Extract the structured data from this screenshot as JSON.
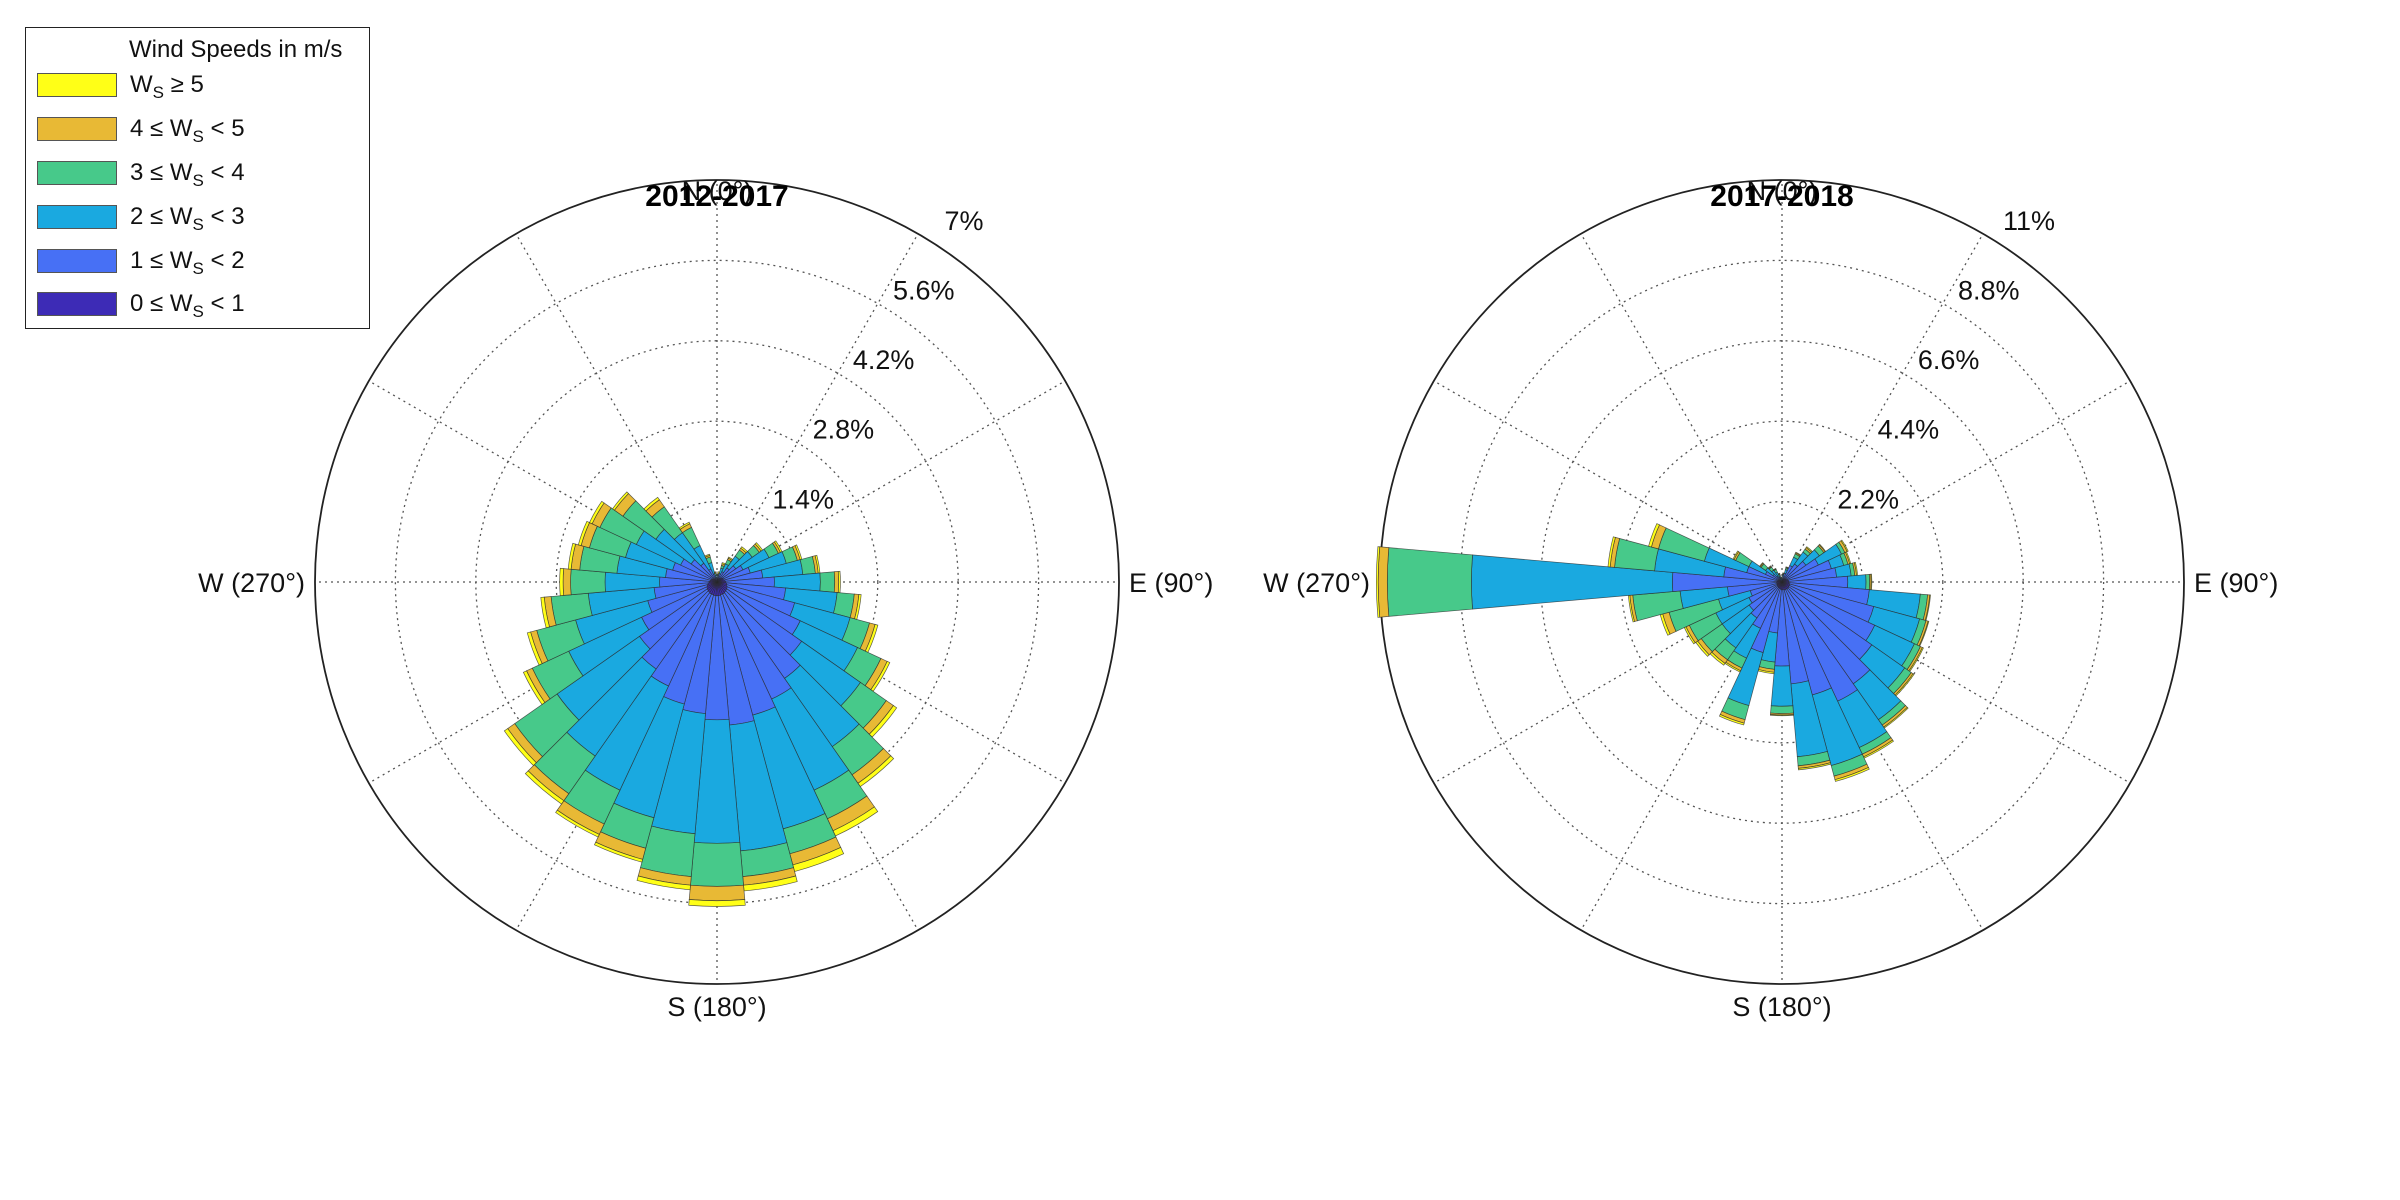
{
  "legend": {
    "title": "Wind Speeds in m/s",
    "items": [
      {
        "pre": "W",
        "sub": "S",
        "post": " ≥ 5",
        "color": "#ffff17"
      },
      {
        "pre": "4 ≤ W",
        "sub": "S",
        "post": " < 5",
        "color": "#e8b935"
      },
      {
        "pre": "3 ≤ W",
        "sub": "S",
        "post": " < 4",
        "color": "#47c98a"
      },
      {
        "pre": "2 ≤ W",
        "sub": "S",
        "post": " < 3",
        "color": "#1aa9e0"
      },
      {
        "pre": "1 ≤ W",
        "sub": "S",
        "post": " < 2",
        "color": "#4770f5"
      },
      {
        "pre": "0 ≤ W",
        "sub": "S",
        "post": " < 1",
        "color": "#3d2bb6"
      }
    ]
  },
  "chart_data": [
    {
      "type": "wind-rose",
      "title": "2012-2017",
      "direction_labels": {
        "N": "N (0°)",
        "E": "E (90°)",
        "S": "S (180°)",
        "W": "W (270°)"
      },
      "radial_ticks": [
        "1.4%",
        "2.8%",
        "4.2%",
        "5.6%",
        "7%"
      ],
      "radial_max": 7,
      "bin_width_deg": 10,
      "directions": [
        0,
        10,
        20,
        30,
        40,
        50,
        60,
        70,
        80,
        90,
        100,
        110,
        120,
        130,
        140,
        150,
        160,
        170,
        180,
        190,
        200,
        210,
        220,
        230,
        240,
        250,
        260,
        270,
        280,
        290,
        300,
        310,
        320,
        330,
        340,
        350
      ],
      "cumulative": [
        [
          0.02,
          0.04,
          0.05,
          0.06,
          0.07,
          0.08
        ],
        [
          0.05,
          0.1,
          0.12,
          0.14,
          0.16,
          0.18
        ],
        [
          0.05,
          0.15,
          0.25,
          0.3,
          0.33,
          0.35
        ],
        [
          0.06,
          0.2,
          0.35,
          0.43,
          0.46,
          0.48
        ],
        [
          0.08,
          0.3,
          0.55,
          0.68,
          0.72,
          0.75
        ],
        [
          0.1,
          0.4,
          0.75,
          0.9,
          0.94,
          0.97
        ],
        [
          0.12,
          0.5,
          1.0,
          1.18,
          1.22,
          1.25
        ],
        [
          0.12,
          0.6,
          1.25,
          1.45,
          1.5,
          1.53
        ],
        [
          0.14,
          0.8,
          1.5,
          1.72,
          1.77,
          1.8
        ],
        [
          0.15,
          1.0,
          1.8,
          2.05,
          2.12,
          2.15
        ],
        [
          0.17,
          1.2,
          2.1,
          2.4,
          2.48,
          2.52
        ],
        [
          0.18,
          1.4,
          2.4,
          2.75,
          2.85,
          2.9
        ],
        [
          0.2,
          1.6,
          2.7,
          3.15,
          3.27,
          3.32
        ],
        [
          0.21,
          1.8,
          3.05,
          3.6,
          3.75,
          3.82
        ],
        [
          0.22,
          2.05,
          3.5,
          4.1,
          4.28,
          4.35
        ],
        [
          0.23,
          2.25,
          4.0,
          4.55,
          4.78,
          4.88
        ],
        [
          0.23,
          2.4,
          4.45,
          4.9,
          5.1,
          5.22
        ],
        [
          0.24,
          2.5,
          4.7,
          5.15,
          5.3,
          5.4
        ],
        [
          0.24,
          2.4,
          4.55,
          5.3,
          5.55,
          5.65
        ],
        [
          0.24,
          2.3,
          4.4,
          5.15,
          5.3,
          5.38
        ],
        [
          0.23,
          2.2,
          4.25,
          4.8,
          5.0,
          5.05
        ],
        [
          0.23,
          2.0,
          4.0,
          4.65,
          4.85,
          4.9
        ],
        [
          0.22,
          1.85,
          3.7,
          4.5,
          4.65,
          4.72
        ],
        [
          0.21,
          1.65,
          3.4,
          4.3,
          4.45,
          4.52
        ],
        [
          0.2,
          1.45,
          2.85,
          3.55,
          3.66,
          3.72
        ],
        [
          0.18,
          1.25,
          2.55,
          3.25,
          3.36,
          3.42
        ],
        [
          0.16,
          1.1,
          2.25,
          2.9,
          3.02,
          3.08
        ],
        [
          0.14,
          1.0,
          1.95,
          2.55,
          2.68,
          2.74
        ],
        [
          0.12,
          0.9,
          1.75,
          2.4,
          2.55,
          2.6
        ],
        [
          0.11,
          0.8,
          1.65,
          2.3,
          2.45,
          2.5
        ],
        [
          0.1,
          0.7,
          1.55,
          2.25,
          2.4,
          2.45
        ],
        [
          0.09,
          0.55,
          1.3,
          2.0,
          2.18,
          2.22
        ],
        [
          0.07,
          0.4,
          1.05,
          1.6,
          1.75,
          1.8
        ],
        [
          0.05,
          0.25,
          0.7,
          1.05,
          1.12,
          1.15
        ],
        [
          0.04,
          0.15,
          0.35,
          0.45,
          0.48,
          0.5
        ],
        [
          0.03,
          0.08,
          0.12,
          0.15,
          0.17,
          0.18
        ]
      ]
    },
    {
      "type": "wind-rose",
      "title": "2017-2018",
      "direction_labels": {
        "N": "N (0°)",
        "E": "E (90°)",
        "S": "S (180°)",
        "W": "W (270°)"
      },
      "radial_ticks": [
        "2.2%",
        "4.4%",
        "6.6%",
        "8.8%",
        "11%"
      ],
      "radial_max": 11,
      "bin_width_deg": 10,
      "directions": [
        0,
        10,
        20,
        30,
        40,
        50,
        60,
        70,
        80,
        90,
        100,
        110,
        120,
        130,
        140,
        150,
        160,
        170,
        180,
        190,
        200,
        210,
        220,
        230,
        240,
        250,
        260,
        270,
        280,
        290,
        300,
        310,
        320,
        330,
        340,
        350
      ],
      "cumulative": [
        [
          0.02,
          0.05,
          0.06,
          0.07,
          0.08,
          0.09
        ],
        [
          0.04,
          0.15,
          0.2,
          0.22,
          0.24,
          0.25
        ],
        [
          0.05,
          0.25,
          0.35,
          0.4,
          0.42,
          0.43
        ],
        [
          0.08,
          0.5,
          0.75,
          0.85,
          0.88,
          0.9
        ],
        [
          0.1,
          0.6,
          1.0,
          1.1,
          1.15,
          1.18
        ],
        [
          0.12,
          0.8,
          1.25,
          1.4,
          1.44,
          1.46
        ],
        [
          0.14,
          1.1,
          1.8,
          1.9,
          1.97,
          2.0
        ],
        [
          0.16,
          1.4,
          1.75,
          1.87,
          1.92,
          1.95
        ],
        [
          0.18,
          1.5,
          1.9,
          2.0,
          2.05,
          2.08
        ],
        [
          0.18,
          1.8,
          2.3,
          2.4,
          2.44,
          2.46
        ],
        [
          0.2,
          2.4,
          3.8,
          4.0,
          4.06,
          4.08
        ],
        [
          0.22,
          2.6,
          3.9,
          4.08,
          4.14,
          4.16
        ],
        [
          0.22,
          2.8,
          4.0,
          4.18,
          4.24,
          4.27
        ],
        [
          0.23,
          3.0,
          4.1,
          4.32,
          4.38,
          4.41
        ],
        [
          0.23,
          3.4,
          4.6,
          4.78,
          4.85,
          4.88
        ],
        [
          0.23,
          3.6,
          5.0,
          5.2,
          5.28,
          5.32
        ],
        [
          0.22,
          3.2,
          5.2,
          5.5,
          5.6,
          5.65
        ],
        [
          0.22,
          2.8,
          4.8,
          5.05,
          5.12,
          5.16
        ],
        [
          0.21,
          2.3,
          3.4,
          3.6,
          3.64,
          3.66
        ],
        [
          0.2,
          1.4,
          2.2,
          2.4,
          2.48,
          2.52
        ],
        [
          0.19,
          2.0,
          3.5,
          3.9,
          4.0,
          4.05
        ],
        [
          0.18,
          1.4,
          2.3,
          2.6,
          2.68,
          2.72
        ],
        [
          0.17,
          1.2,
          2.2,
          2.6,
          2.72,
          2.78
        ],
        [
          0.16,
          1.1,
          2.0,
          2.7,
          2.82,
          2.88
        ],
        [
          0.15,
          1.0,
          2.0,
          2.8,
          2.9,
          2.95
        ],
        [
          0.14,
          0.9,
          1.8,
          3.2,
          3.38,
          3.45
        ],
        [
          0.14,
          1.5,
          2.8,
          4.1,
          4.18,
          4.22
        ],
        [
          0.15,
          3.0,
          8.5,
          10.8,
          11.05,
          11.1
        ],
        [
          0.14,
          1.6,
          3.5,
          4.6,
          4.72,
          4.78
        ],
        [
          0.12,
          1.0,
          2.2,
          3.5,
          3.7,
          3.78
        ],
        [
          0.1,
          0.5,
          1.0,
          1.4,
          1.45,
          1.48
        ],
        [
          0.08,
          0.3,
          0.55,
          0.7,
          0.73,
          0.75
        ],
        [
          0.06,
          0.2,
          0.4,
          0.5,
          0.52,
          0.54
        ],
        [
          0.05,
          0.15,
          0.3,
          0.38,
          0.4,
          0.41
        ],
        [
          0.04,
          0.1,
          0.18,
          0.22,
          0.24,
          0.25
        ],
        [
          0.03,
          0.06,
          0.1,
          0.12,
          0.13,
          0.14
        ]
      ]
    }
  ]
}
